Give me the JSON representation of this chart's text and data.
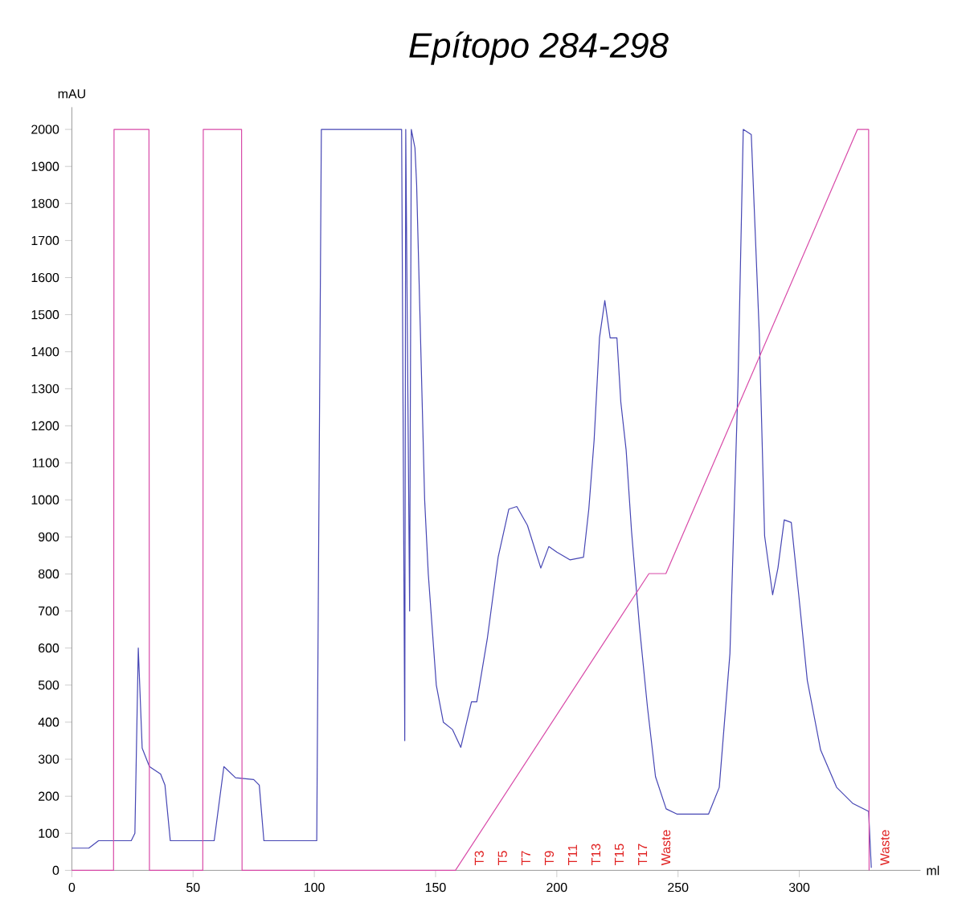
{
  "chart_data": {
    "type": "line",
    "title": "*Epítopo 284-298*",
    "xlabel": "ml",
    "ylabel": "mAU",
    "xlim": [
      0,
      350
    ],
    "ylim": [
      0,
      2060
    ],
    "xticks": [
      0,
      50,
      100,
      150,
      200,
      250,
      300
    ],
    "yticks": [
      0,
      100,
      200,
      300,
      400,
      500,
      600,
      700,
      800,
      900,
      1000,
      1100,
      1200,
      1300,
      1400,
      1500,
      1600,
      1700,
      1800,
      1900,
      2000
    ],
    "marker": "none",
    "line_style": "solid",
    "series": [
      {
        "color": "#4646b4",
        "x": [
          0,
          7,
          11,
          24.5,
          26,
          27.4,
          29,
          32,
          36.6,
          38.4,
          40.6,
          58.7,
          62.7,
          67.5,
          75,
          77.3,
          79.2,
          101,
          102.9,
          136,
          137.3,
          137.7,
          139.3,
          140,
          141.5,
          142.2,
          145.5,
          147,
          150.3,
          153.2,
          157,
          160.4,
          164.8,
          167,
          171.4,
          175.8,
          180.2,
          183.5,
          187.9,
          193.4,
          196.7,
          200,
          205.5,
          211,
          213.2,
          215.4,
          217.6,
          219.8,
          222,
          224.8,
          226.4,
          228.6,
          230.8,
          234.1,
          237.4,
          240.7,
          245.1,
          249.5,
          256,
          262.6,
          267,
          271.4,
          274.7,
          276.9,
          280.2,
          283.5,
          285.7,
          289,
          291.2,
          293.8,
          296.7,
          300,
          303.3,
          308.8,
          315.4,
          322,
          328.6,
          329.7
        ],
        "values": [
          60,
          60,
          80,
          80,
          100,
          600,
          330,
          280,
          260,
          230,
          80,
          80,
          280,
          250,
          245,
          230,
          80,
          80,
          2000,
          2000,
          350,
          2000,
          700,
          2000,
          1950,
          1850,
          1000,
          800,
          500,
          400,
          380,
          332,
          455,
          455,
          628,
          845,
          975,
          982,
          931,
          816,
          874,
          859,
          838,
          845,
          975,
          1162,
          1437,
          1538,
          1437,
          1437,
          1264,
          1134,
          917,
          657,
          440,
          253,
          166,
          152,
          152,
          152,
          224,
          585,
          1307,
          2000,
          1986,
          1451,
          903,
          744,
          816,
          946,
          939,
          729,
          513,
          325,
          224,
          181,
          159,
          7
        ]
      },
      {
        "color": "#d84aa8",
        "x": [
          0,
          17.2,
          17.4,
          31.8,
          32,
          54,
          54.2,
          70,
          70.2,
          158.2,
          238,
          245,
          324,
          328.6,
          328.8
        ],
        "values": [
          0,
          0,
          2000,
          2000,
          0,
          0,
          2000,
          2000,
          0,
          0,
          801,
          801,
          2000,
          2000,
          0
        ]
      }
    ],
    "annotations": [
      "T3",
      "T5",
      "T7",
      "T9",
      "T11",
      "T13",
      "T15",
      "T17",
      "Waste",
      "Waste"
    ]
  }
}
